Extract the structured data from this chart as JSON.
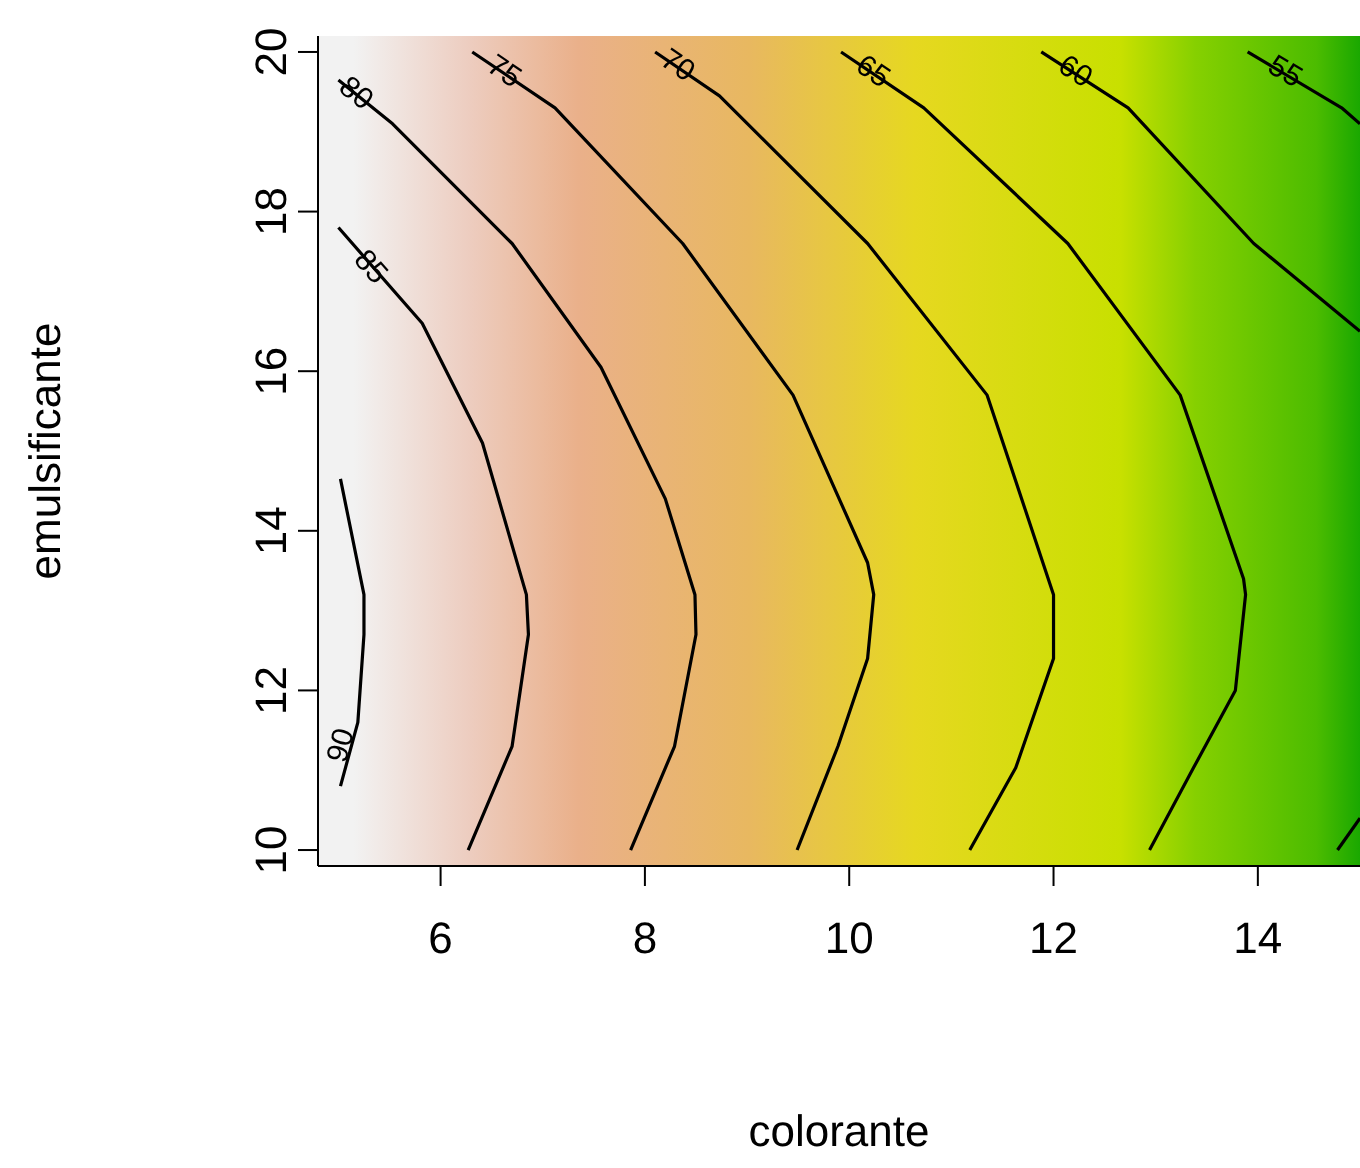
{
  "chart_data": {
    "type": "line",
    "xlabel": "colorante",
    "ylabel": "emulsificante",
    "xlim": [
      4.8,
      15
    ],
    "xticks": [
      6,
      8,
      10,
      12,
      14
    ],
    "ylim": [
      9.8,
      20.2
    ],
    "yticks": [
      10,
      12,
      14,
      16,
      18,
      20
    ],
    "marker": "none",
    "series": [
      {
        "name": "90",
        "color": "#000000",
        "x": [
          5.02,
          5.19,
          5.25,
          5.25,
          5.02
        ],
        "values": [
          10.8,
          11.6,
          12.7,
          13.2,
          14.65
        ]
      },
      {
        "name": "85",
        "color": "#000000",
        "x": [
          5.0,
          5.82,
          6.41,
          6.84,
          6.86,
          6.7,
          6.27
        ],
        "values": [
          17.8,
          16.6,
          15.1,
          13.2,
          12.7,
          11.3,
          10.0
        ]
      },
      {
        "name": "80",
        "color": "#000000",
        "x": [
          5.0,
          5.53,
          6.7,
          7.57,
          8.2,
          8.49,
          8.5,
          8.29,
          7.86
        ],
        "values": [
          19.65,
          19.1,
          17.6,
          16.05,
          14.4,
          13.2,
          12.7,
          11.3,
          10.0
        ]
      },
      {
        "name": "75",
        "color": "#000000",
        "x": [
          6.31,
          7.12,
          8.37,
          9.45,
          10.18,
          10.24,
          10.18,
          9.89,
          9.49
        ],
        "values": [
          20.0,
          19.3,
          17.6,
          15.7,
          13.6,
          13.2,
          12.4,
          11.3,
          10.0
        ]
      },
      {
        "name": "70",
        "color": "#000000",
        "x": [
          8.1,
          8.73,
          10.18,
          11.35,
          12.0,
          12.0,
          11.63,
          11.18
        ],
        "values": [
          20.0,
          19.45,
          17.6,
          15.7,
          13.2,
          12.4,
          11.03,
          10.0
        ]
      },
      {
        "name": "65",
        "color": "#000000",
        "x": [
          9.92,
          10.73,
          12.14,
          13.24,
          13.86,
          13.88,
          13.78,
          13.37,
          12.94
        ],
        "values": [
          20.0,
          19.3,
          17.6,
          15.7,
          13.4,
          13.2,
          12.0,
          11.03,
          10.0
        ]
      },
      {
        "name": "60",
        "color": "#000000",
        "x": [
          11.88,
          12.73,
          13.96,
          15.0
        ],
        "values": [
          20.0,
          19.3,
          17.6,
          16.5
        ]
      },
      {
        "color": "#000000",
        "x": [
          14.78,
          15.0
        ],
        "values": [
          10.0,
          10.4
        ]
      },
      {
        "name": "55",
        "color": "#000000",
        "x": [
          13.9,
          14.82,
          15.0
        ],
        "values": [
          20.0,
          19.3,
          19.1
        ]
      }
    ]
  }
}
